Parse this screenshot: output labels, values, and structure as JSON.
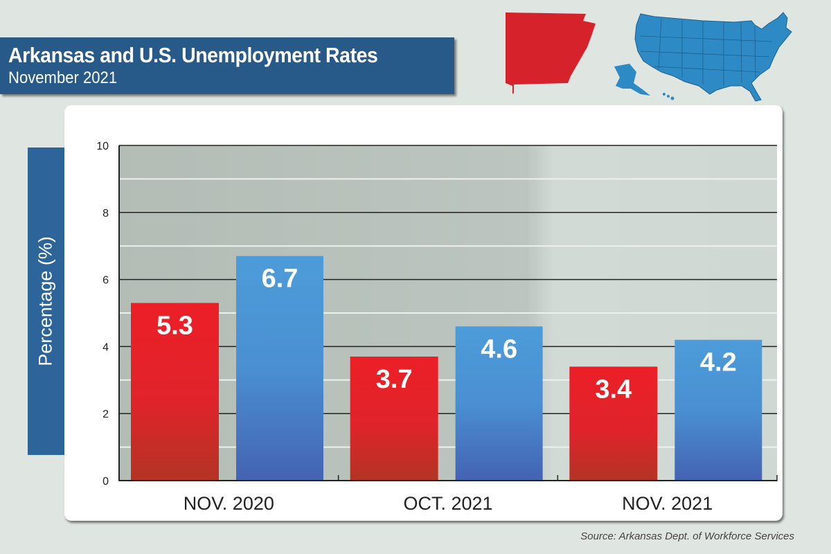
{
  "header": {
    "title": "Arkansas and U.S. Unemployment Rates",
    "subtitle": "November 2021"
  },
  "source": "Source: Arkansas Dept. of Workforce Services",
  "icons": {
    "state_map": "arkansas-map-icon",
    "country_map": "us-map-icon"
  },
  "colors": {
    "arkansas": "#e8202a",
    "us": "#4a97d6",
    "header": "#285a89"
  },
  "chart_data": {
    "type": "bar",
    "title": "Arkansas and U.S. Unemployment Rates",
    "subtitle": "November 2021",
    "xlabel": "",
    "ylabel": "Percentage (%)",
    "ylim": [
      0,
      10
    ],
    "yticks": [
      "0",
      "2",
      "4",
      "6",
      "8",
      "10"
    ],
    "grid": true,
    "categories": [
      "NOV. 2020",
      "OCT. 2021",
      "NOV. 2021"
    ],
    "series": [
      {
        "color": "#e8202a",
        "values": [
          5.3,
          3.7,
          3.4
        ],
        "labels": [
          "5.3",
          "3.7",
          "3.4"
        ]
      },
      {
        "color": "#4a97d6",
        "values": [
          6.7,
          4.6,
          4.2
        ],
        "labels": [
          "6.7",
          "4.6",
          "4.2"
        ]
      }
    ]
  }
}
